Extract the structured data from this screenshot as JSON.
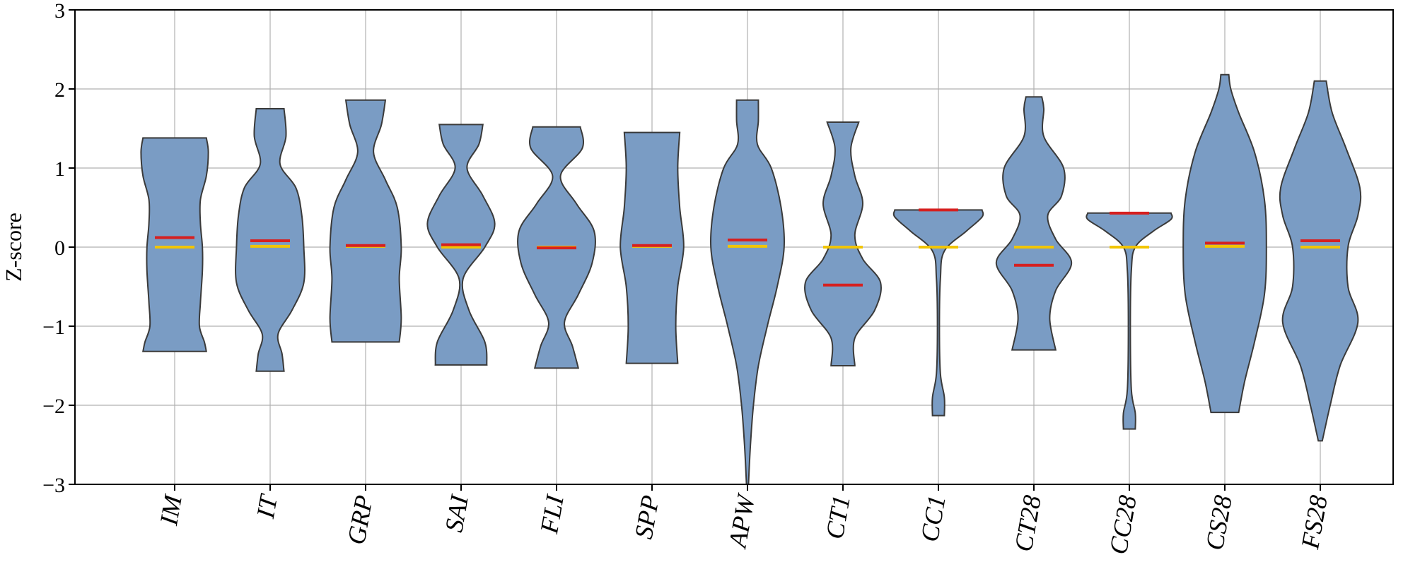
{
  "chart_data": {
    "type": "violin",
    "ylabel": "Z-score",
    "xlabel": "",
    "ylim": [
      -3,
      3
    ],
    "yticks": [
      3,
      2,
      1,
      0,
      -1,
      -2,
      -3
    ],
    "ytick_labels": [
      "3",
      "2",
      "1",
      "0",
      "−1",
      "−2",
      "−3"
    ],
    "grid": true,
    "colors": {
      "body": "#7a9cc4",
      "edge": "#3a3a3a",
      "mean": "#d62020",
      "median": "#f2c500"
    },
    "categories": [
      "IM",
      "IT",
      "GRP",
      "SAI",
      "FLI",
      "SPP",
      "APW",
      "CT1",
      "CC1",
      "CT28",
      "CC28",
      "CS28",
      "FS28"
    ],
    "series": [
      {
        "category": "IM",
        "min": -1.32,
        "max": 1.38,
        "mean": 0.12,
        "median": 0.0,
        "density": [
          [
            -1.32,
            0.32
          ],
          [
            -1.2,
            0.3
          ],
          [
            -1.0,
            0.25
          ],
          [
            -0.7,
            0.26
          ],
          [
            -0.3,
            0.28
          ],
          [
            0.0,
            0.28
          ],
          [
            0.3,
            0.26
          ],
          [
            0.6,
            0.26
          ],
          [
            0.9,
            0.32
          ],
          [
            1.2,
            0.34
          ],
          [
            1.38,
            0.32
          ]
        ]
      },
      {
        "category": "IT",
        "min": -1.57,
        "max": 1.75,
        "mean": 0.08,
        "median": 0.01,
        "density": [
          [
            -1.57,
            0.14
          ],
          [
            -1.35,
            0.12
          ],
          [
            -1.1,
            0.08
          ],
          [
            -0.8,
            0.22
          ],
          [
            -0.45,
            0.34
          ],
          [
            0.0,
            0.34
          ],
          [
            0.4,
            0.32
          ],
          [
            0.75,
            0.26
          ],
          [
            1.05,
            0.1
          ],
          [
            1.4,
            0.16
          ],
          [
            1.75,
            0.14
          ]
        ]
      },
      {
        "category": "GRP",
        "min": -1.2,
        "max": 1.86,
        "mean": 0.02,
        "median": 0.01,
        "density": [
          [
            -1.2,
            0.34
          ],
          [
            -0.9,
            0.36
          ],
          [
            -0.4,
            0.34
          ],
          [
            0.0,
            0.36
          ],
          [
            0.5,
            0.32
          ],
          [
            0.85,
            0.2
          ],
          [
            1.2,
            0.08
          ],
          [
            1.55,
            0.16
          ],
          [
            1.86,
            0.2
          ]
        ]
      },
      {
        "category": "SAI",
        "min": -1.49,
        "max": 1.55,
        "mean": 0.03,
        "median": 0.0,
        "density": [
          [
            -1.49,
            0.26
          ],
          [
            -1.2,
            0.24
          ],
          [
            -0.8,
            0.08
          ],
          [
            -0.4,
            0.02
          ],
          [
            0.0,
            0.24
          ],
          [
            0.3,
            0.34
          ],
          [
            0.65,
            0.22
          ],
          [
            1.0,
            0.06
          ],
          [
            1.3,
            0.18
          ],
          [
            1.55,
            0.22
          ]
        ]
      },
      {
        "category": "FLI",
        "min": -1.53,
        "max": 1.52,
        "mean": -0.01,
        "median": 0.0,
        "density": [
          [
            -1.53,
            0.22
          ],
          [
            -1.25,
            0.16
          ],
          [
            -0.95,
            0.08
          ],
          [
            -0.6,
            0.22
          ],
          [
            -0.2,
            0.36
          ],
          [
            0.2,
            0.38
          ],
          [
            0.55,
            0.2
          ],
          [
            0.9,
            0.04
          ],
          [
            1.25,
            0.26
          ],
          [
            1.52,
            0.24
          ]
        ]
      },
      {
        "category": "SPP",
        "min": -1.47,
        "max": 1.45,
        "mean": 0.02,
        "median": 0.01,
        "density": [
          [
            -1.47,
            0.26
          ],
          [
            -1.0,
            0.24
          ],
          [
            -0.5,
            0.26
          ],
          [
            0.0,
            0.32
          ],
          [
            0.5,
            0.28
          ],
          [
            1.0,
            0.26
          ],
          [
            1.45,
            0.28
          ]
        ]
      },
      {
        "category": "APW",
        "min": -3.0,
        "max": 1.86,
        "mean": 0.09,
        "median": 0.01,
        "density": [
          [
            -3.0,
            0.01
          ],
          [
            -2.5,
            0.03
          ],
          [
            -2.0,
            0.06
          ],
          [
            -1.5,
            0.11
          ],
          [
            -1.0,
            0.2
          ],
          [
            -0.5,
            0.3
          ],
          [
            0.0,
            0.37
          ],
          [
            0.5,
            0.34
          ],
          [
            1.0,
            0.24
          ],
          [
            1.3,
            0.1
          ],
          [
            1.6,
            0.11
          ],
          [
            1.86,
            0.11
          ]
        ]
      },
      {
        "category": "CT1",
        "min": -1.5,
        "max": 1.58,
        "mean": -0.48,
        "median": 0.0,
        "density": [
          [
            -1.5,
            0.12
          ],
          [
            -1.15,
            0.12
          ],
          [
            -0.8,
            0.32
          ],
          [
            -0.45,
            0.38
          ],
          [
            -0.15,
            0.2
          ],
          [
            0.15,
            0.12
          ],
          [
            0.55,
            0.2
          ],
          [
            0.9,
            0.12
          ],
          [
            1.25,
            0.08
          ],
          [
            1.58,
            0.16
          ]
        ]
      },
      {
        "category": "CC1",
        "min": -2.13,
        "max": 0.47,
        "mean": 0.47,
        "median": 0.0,
        "density": [
          [
            -2.13,
            0.06
          ],
          [
            -1.9,
            0.06
          ],
          [
            -1.6,
            0.02
          ],
          [
            -1.0,
            0.01
          ],
          [
            -0.4,
            0.02
          ],
          [
            -0.05,
            0.06
          ],
          [
            0.2,
            0.28
          ],
          [
            0.38,
            0.44
          ],
          [
            0.47,
            0.44
          ]
        ]
      },
      {
        "category": "CT28",
        "min": -1.3,
        "max": 1.9,
        "mean": -0.23,
        "median": 0.0,
        "density": [
          [
            -1.3,
            0.22
          ],
          [
            -0.9,
            0.16
          ],
          [
            -0.55,
            0.22
          ],
          [
            -0.2,
            0.38
          ],
          [
            0.1,
            0.22
          ],
          [
            0.4,
            0.14
          ],
          [
            0.65,
            0.28
          ],
          [
            1.0,
            0.3
          ],
          [
            1.4,
            0.1
          ],
          [
            1.75,
            0.1
          ],
          [
            1.9,
            0.08
          ]
        ]
      },
      {
        "category": "CC28",
        "min": -2.3,
        "max": 0.43,
        "mean": 0.43,
        "median": 0.0,
        "density": [
          [
            -2.3,
            0.06
          ],
          [
            -2.1,
            0.06
          ],
          [
            -1.8,
            0.02
          ],
          [
            -1.0,
            0.01
          ],
          [
            -0.3,
            0.02
          ],
          [
            0.0,
            0.06
          ],
          [
            0.2,
            0.24
          ],
          [
            0.35,
            0.42
          ],
          [
            0.43,
            0.42
          ]
        ]
      },
      {
        "category": "CS28",
        "min": -2.09,
        "max": 2.18,
        "mean": 0.05,
        "median": 0.01,
        "density": [
          [
            -2.09,
            0.14
          ],
          [
            -1.7,
            0.2
          ],
          [
            -1.2,
            0.3
          ],
          [
            -0.6,
            0.4
          ],
          [
            0.0,
            0.42
          ],
          [
            0.6,
            0.4
          ],
          [
            1.2,
            0.3
          ],
          [
            1.7,
            0.14
          ],
          [
            2.0,
            0.06
          ],
          [
            2.18,
            0.04
          ]
        ]
      },
      {
        "category": "FS28",
        "min": -2.45,
        "max": 2.1,
        "mean": 0.08,
        "median": 0.0,
        "density": [
          [
            -2.45,
            0.02
          ],
          [
            -2.0,
            0.1
          ],
          [
            -1.5,
            0.2
          ],
          [
            -0.95,
            0.38
          ],
          [
            -0.5,
            0.28
          ],
          [
            0.0,
            0.28
          ],
          [
            0.4,
            0.38
          ],
          [
            0.75,
            0.4
          ],
          [
            1.25,
            0.26
          ],
          [
            1.7,
            0.12
          ],
          [
            2.1,
            0.06
          ]
        ]
      }
    ]
  }
}
